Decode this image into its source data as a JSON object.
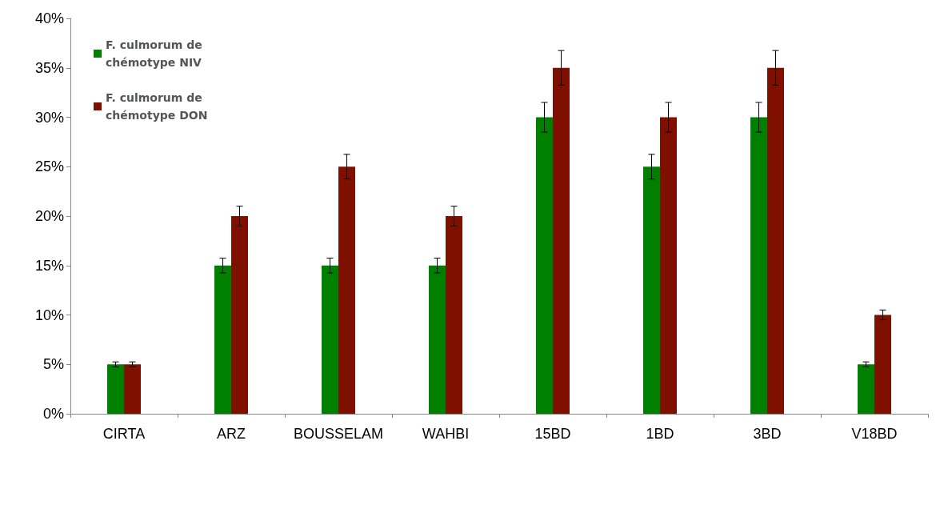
{
  "chart_data": {
    "type": "bar",
    "categories": [
      "CIRTA",
      "ARZ",
      "BOUSSELAM",
      "WAHBI",
      "15BD",
      "1BD",
      "3BD",
      "V18BD"
    ],
    "series": [
      {
        "name": "F. culmorum de\nchémotype NIV",
        "color": "#008000",
        "values": [
          5,
          15,
          15,
          15,
          30,
          25,
          30,
          5
        ],
        "errors": [
          0.25,
          0.75,
          0.75,
          0.75,
          1.5,
          1.25,
          1.5,
          0.25
        ]
      },
      {
        "name": "F. culmorum de\nchémotype DON",
        "color": "#7f1000",
        "values": [
          5,
          20,
          25,
          20,
          35,
          30,
          35,
          10
        ],
        "errors": [
          0.25,
          1,
          1.25,
          1,
          1.75,
          1.5,
          1.75,
          0.5
        ]
      }
    ],
    "ylim": [
      0,
      40
    ],
    "yticks": [
      {
        "value": 0,
        "label": "0%"
      },
      {
        "value": 5,
        "label": "5%"
      },
      {
        "value": 10,
        "label": "10%"
      },
      {
        "value": 15,
        "label": "15%"
      },
      {
        "value": 20,
        "label": "20%"
      },
      {
        "value": 25,
        "label": "25%"
      },
      {
        "value": 30,
        "label": "30%"
      },
      {
        "value": 35,
        "label": "35%"
      },
      {
        "value": 40,
        "label": "40%"
      }
    ],
    "grid": false,
    "legend": "top left"
  }
}
